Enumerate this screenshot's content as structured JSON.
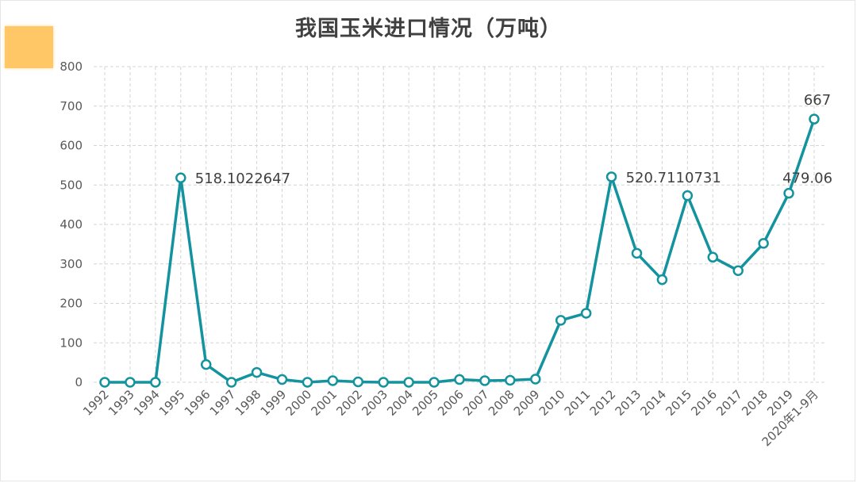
{
  "chart_data": {
    "type": "line",
    "title": "我国玉米进口情况（万吨）",
    "xlabel": "",
    "ylabel": "",
    "ylim": [
      0,
      800
    ],
    "yticks": [
      0,
      100,
      200,
      300,
      400,
      500,
      600,
      700,
      800
    ],
    "grid": true,
    "legend": "none",
    "categories": [
      "1992",
      "1993",
      "1994",
      "1995",
      "1996",
      "1997",
      "1998",
      "1999",
      "2000",
      "2001",
      "2002",
      "2003",
      "2004",
      "2005",
      "2006",
      "2007",
      "2008",
      "2009",
      "2010",
      "2011",
      "2012",
      "2013",
      "2014",
      "2015",
      "2016",
      "2017",
      "2018",
      "2019",
      "2020年1-9月"
    ],
    "series": [
      {
        "values": [
          0,
          0,
          0,
          518.1022647,
          45,
          0,
          25,
          7,
          0,
          4,
          1,
          0,
          0,
          0,
          7,
          4,
          5,
          8,
          157,
          175,
          520.7110731,
          327,
          260,
          473,
          317,
          283,
          352,
          479.06,
          667
        ],
        "data_labels": [
          {
            "index": 3,
            "text": "518.1022647"
          },
          {
            "index": 20,
            "text": "520.7110731"
          },
          {
            "index": 27,
            "text": "479.06"
          },
          {
            "index": 28,
            "text": "667"
          }
        ],
        "color": "#13939e"
      }
    ]
  }
}
